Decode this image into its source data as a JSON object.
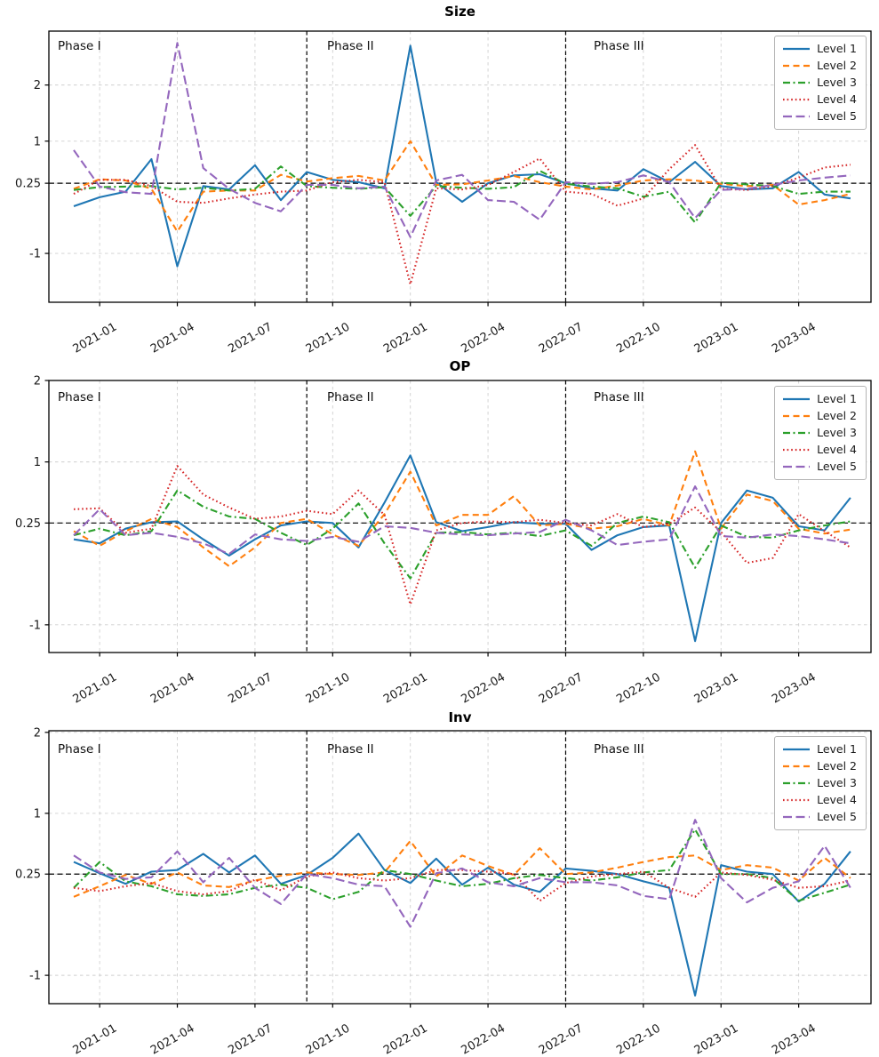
{
  "figure": {
    "background": "#ffffff",
    "text_color": "#000000",
    "grid_color": "#cfcfcf",
    "ref_line_color": "#000000"
  },
  "phases": [
    "Phase I",
    "Phase II",
    "Phase III"
  ],
  "legend": {
    "position": "upper right",
    "labels": [
      "Level 1",
      "Level 2",
      "Level 3",
      "Level 4",
      "Level 5"
    ]
  },
  "x_axis": {
    "tick_labels": [
      "2021-01",
      "2021-04",
      "2021-07",
      "2021-10",
      "2022-01",
      "2022-04",
      "2022-07",
      "2022-10",
      "2023-01",
      "2023-04"
    ]
  },
  "chart_data": [
    {
      "type": "line",
      "title": "Size",
      "categories": [
        "2020-12",
        "2021-01",
        "2021-02",
        "2021-03",
        "2021-04",
        "2021-05",
        "2021-06",
        "2021-07",
        "2021-08",
        "2021-09",
        "2021-10",
        "2021-11",
        "2021-12",
        "2022-01",
        "2022-02",
        "2022-03",
        "2022-04",
        "2022-05",
        "2022-06",
        "2022-07",
        "2022-08",
        "2022-09",
        "2022-10",
        "2022-11",
        "2022-12",
        "2023-01",
        "2023-02",
        "2023-03",
        "2023-04",
        "2023-05",
        "2023-06"
      ],
      "x_tick_indices": [
        1,
        4,
        7,
        10,
        13,
        16,
        19,
        22,
        25,
        28
      ],
      "x_tick_labels": [
        "2021-01",
        "2021-04",
        "2021-07",
        "2021-10",
        "2022-01",
        "2022-04",
        "2022-07",
        "2022-10",
        "2023-01",
        "2023-04"
      ],
      "y_ticks": [
        2,
        1,
        0.25,
        -1
      ],
      "y_tick_labels": [
        "2",
        "1",
        "0.25",
        "-1"
      ],
      "ylim": [
        -1.87,
        2.96
      ],
      "ref_line_y": 0.25,
      "phase_line_indices": [
        9,
        19
      ],
      "grid": true,
      "series": [
        {
          "name": "Level 1",
          "color": "#1f77b4",
          "line_style": "solid",
          "values": [
            -0.16,
            0.0,
            0.1,
            0.68,
            -1.23,
            0.2,
            0.14,
            0.57,
            -0.05,
            0.45,
            0.31,
            0.27,
            0.16,
            2.7,
            0.27,
            -0.08,
            0.25,
            0.39,
            0.41,
            0.25,
            0.16,
            0.12,
            0.5,
            0.27,
            0.63,
            0.2,
            0.14,
            0.16,
            0.45,
            0.05,
            -0.02
          ]
        },
        {
          "name": "Level 2",
          "color": "#ff7f0e",
          "line_style": "dashed",
          "values": [
            0.15,
            0.32,
            0.3,
            0.15,
            -0.61,
            0.1,
            0.12,
            0.12,
            0.4,
            0.28,
            0.34,
            0.38,
            0.3,
            1.0,
            0.22,
            0.23,
            0.3,
            0.38,
            0.27,
            0.19,
            0.14,
            0.21,
            0.3,
            0.32,
            0.3,
            0.24,
            0.2,
            0.22,
            -0.13,
            -0.05,
            0.06
          ]
        },
        {
          "name": "Level 3",
          "color": "#2ca02c",
          "line_style": "dashdot",
          "values": [
            0.13,
            0.18,
            0.19,
            0.2,
            0.14,
            0.17,
            0.12,
            0.15,
            0.55,
            0.2,
            0.17,
            0.15,
            0.18,
            -0.33,
            0.2,
            0.17,
            0.15,
            0.18,
            0.47,
            0.24,
            0.19,
            0.16,
            0.01,
            0.1,
            -0.45,
            0.26,
            0.23,
            0.2,
            0.06,
            0.1,
            0.1
          ]
        },
        {
          "name": "Level 4",
          "color": "#d62728",
          "line_style": "dotted",
          "values": [
            0.06,
            0.31,
            0.31,
            0.2,
            -0.08,
            -0.1,
            -0.02,
            0.05,
            0.1,
            0.12,
            0.27,
            0.31,
            0.27,
            -1.55,
            0.16,
            0.14,
            0.22,
            0.45,
            0.69,
            0.1,
            0.06,
            -0.15,
            -0.02,
            0.5,
            0.93,
            0.15,
            0.13,
            0.2,
            0.35,
            0.53,
            0.58
          ]
        },
        {
          "name": "Level 5",
          "color": "#9467bd",
          "line_style": "longdash",
          "values": [
            0.84,
            0.19,
            0.09,
            0.06,
            2.75,
            0.52,
            0.15,
            -0.1,
            -0.25,
            0.22,
            0.22,
            0.16,
            0.19,
            -0.71,
            0.3,
            0.4,
            -0.05,
            -0.08,
            -0.4,
            0.27,
            0.24,
            0.27,
            0.39,
            0.27,
            -0.37,
            0.13,
            0.15,
            0.22,
            0.3,
            0.35,
            0.39
          ]
        }
      ]
    },
    {
      "type": "line",
      "title": "OP",
      "categories": [
        "2020-12",
        "2021-01",
        "2021-02",
        "2021-03",
        "2021-04",
        "2021-05",
        "2021-06",
        "2021-07",
        "2021-08",
        "2021-09",
        "2021-10",
        "2021-11",
        "2021-12",
        "2022-01",
        "2022-02",
        "2022-03",
        "2022-04",
        "2022-05",
        "2022-06",
        "2022-07",
        "2022-08",
        "2022-09",
        "2022-10",
        "2022-11",
        "2022-12",
        "2023-01",
        "2023-02",
        "2023-03",
        "2023-04",
        "2023-05",
        "2023-06"
      ],
      "x_tick_indices": [
        1,
        4,
        7,
        10,
        13,
        16,
        19,
        22,
        25,
        28
      ],
      "x_tick_labels": [
        "2021-01",
        "2021-04",
        "2021-07",
        "2021-10",
        "2022-01",
        "2022-04",
        "2022-07",
        "2022-10",
        "2023-01",
        "2023-04"
      ],
      "y_ticks": [
        2,
        1,
        0.25,
        -1
      ],
      "y_tick_labels": [
        "2",
        "1",
        "0.25",
        "-1"
      ],
      "ylim": [
        -1.34,
        2.0
      ],
      "ref_line_y": 0.25,
      "phase_line_indices": [
        9,
        19
      ],
      "grid": true,
      "series": [
        {
          "name": "Level 1",
          "color": "#1f77b4",
          "line_style": "solid",
          "values": [
            0.05,
            0.0,
            0.18,
            0.26,
            0.27,
            0.05,
            -0.15,
            0.05,
            0.22,
            0.27,
            0.25,
            -0.05,
            0.5,
            1.08,
            0.26,
            0.15,
            0.2,
            0.26,
            0.24,
            0.24,
            -0.08,
            0.1,
            0.2,
            0.22,
            -1.2,
            0.25,
            0.65,
            0.56,
            0.21,
            0.16,
            0.56
          ]
        },
        {
          "name": "Level 2",
          "color": "#ff7f0e",
          "line_style": "dashed",
          "values": [
            0.15,
            -0.03,
            0.15,
            0.3,
            0.2,
            -0.05,
            -0.28,
            -0.05,
            0.25,
            0.3,
            0.11,
            -0.03,
            0.36,
            0.88,
            0.22,
            0.35,
            0.35,
            0.58,
            0.22,
            0.24,
            0.18,
            0.21,
            0.3,
            0.22,
            1.13,
            0.18,
            0.6,
            0.52,
            0.18,
            0.12,
            0.17
          ]
        },
        {
          "name": "Level 3",
          "color": "#2ca02c",
          "line_style": "dashdot",
          "values": [
            0.1,
            0.18,
            0.1,
            0.15,
            0.65,
            0.45,
            0.33,
            0.3,
            0.13,
            -0.02,
            0.18,
            0.49,
            0.0,
            -0.43,
            0.13,
            0.14,
            0.11,
            0.13,
            0.09,
            0.16,
            -0.03,
            0.25,
            0.33,
            0.26,
            -0.3,
            0.22,
            0.08,
            0.07,
            0.16,
            0.22,
            0.27
          ]
        },
        {
          "name": "Level 4",
          "color": "#d62728",
          "line_style": "dotted",
          "values": [
            0.42,
            0.43,
            0.13,
            0.18,
            0.95,
            0.6,
            0.44,
            0.3,
            0.33,
            0.4,
            0.36,
            0.65,
            0.35,
            -0.75,
            0.16,
            0.25,
            0.27,
            0.26,
            0.29,
            0.25,
            0.22,
            0.36,
            0.2,
            0.24,
            0.44,
            0.14,
            -0.24,
            -0.18,
            0.36,
            0.15,
            -0.05
          ]
        },
        {
          "name": "Level 5",
          "color": "#9467bd",
          "line_style": "longdash",
          "values": [
            0.1,
            0.42,
            0.1,
            0.13,
            0.08,
            0.0,
            -0.13,
            0.11,
            0.05,
            0.03,
            0.08,
            0.02,
            0.21,
            0.19,
            0.13,
            0.11,
            0.1,
            0.12,
            0.14,
            0.29,
            0.16,
            -0.02,
            0.02,
            0.05,
            0.7,
            0.09,
            0.07,
            0.11,
            0.09,
            0.05,
            0.0
          ]
        }
      ]
    },
    {
      "type": "line",
      "title": "Inv",
      "categories": [
        "2020-12",
        "2021-01",
        "2021-02",
        "2021-03",
        "2021-04",
        "2021-05",
        "2021-06",
        "2021-07",
        "2021-08",
        "2021-09",
        "2021-10",
        "2021-11",
        "2021-12",
        "2022-01",
        "2022-02",
        "2022-03",
        "2022-04",
        "2022-05",
        "2022-06",
        "2022-07",
        "2022-08",
        "2022-09",
        "2022-10",
        "2022-11",
        "2022-12",
        "2023-01",
        "2023-02",
        "2023-03",
        "2023-04",
        "2023-05",
        "2023-06"
      ],
      "x_tick_indices": [
        1,
        4,
        7,
        10,
        13,
        16,
        19,
        22,
        25,
        28
      ],
      "x_tick_labels": [
        "2021-01",
        "2021-04",
        "2021-07",
        "2021-10",
        "2022-01",
        "2022-04",
        "2022-07",
        "2022-10",
        "2023-01",
        "2023-04"
      ],
      "y_ticks": [
        2,
        1,
        0.25,
        -1
      ],
      "y_tick_labels": [
        "2",
        "1",
        "0.25",
        "-1"
      ],
      "ylim": [
        -1.35,
        2.02
      ],
      "ref_line_y": 0.25,
      "phase_line_indices": [
        9,
        19
      ],
      "grid": true,
      "series": [
        {
          "name": "Level 1",
          "color": "#1f77b4",
          "line_style": "solid",
          "values": [
            0.4,
            0.26,
            0.13,
            0.28,
            0.3,
            0.5,
            0.27,
            0.48,
            0.13,
            0.24,
            0.45,
            0.75,
            0.3,
            0.14,
            0.44,
            0.12,
            0.33,
            0.12,
            0.03,
            0.32,
            0.29,
            0.25,
            0.16,
            0.08,
            -1.25,
            0.36,
            0.28,
            0.25,
            -0.09,
            0.13,
            0.53
          ]
        },
        {
          "name": "Level 2",
          "color": "#ff7f0e",
          "line_style": "dashed",
          "values": [
            -0.03,
            0.1,
            0.24,
            0.13,
            0.27,
            0.11,
            0.09,
            0.17,
            0.23,
            0.27,
            0.25,
            0.24,
            0.27,
            0.66,
            0.22,
            0.48,
            0.35,
            0.24,
            0.57,
            0.25,
            0.27,
            0.33,
            0.4,
            0.46,
            0.48,
            0.3,
            0.36,
            0.33,
            0.17,
            0.45,
            0.2
          ]
        },
        {
          "name": "Level 3",
          "color": "#2ca02c",
          "line_style": "dashdot",
          "values": [
            0.08,
            0.4,
            0.16,
            0.1,
            0.0,
            -0.02,
            0.0,
            0.08,
            0.12,
            0.08,
            -0.06,
            0.03,
            0.3,
            0.25,
            0.17,
            0.1,
            0.13,
            0.2,
            0.24,
            0.2,
            0.17,
            0.21,
            0.27,
            0.3,
            0.8,
            0.25,
            0.25,
            0.2,
            -0.08,
            0.02,
            0.12
          ]
        },
        {
          "name": "Level 4",
          "color": "#d62728",
          "line_style": "dotted",
          "values": [
            0.08,
            0.04,
            0.1,
            0.14,
            0.04,
            0.0,
            0.04,
            0.18,
            0.05,
            0.22,
            0.27,
            0.2,
            0.17,
            0.2,
            0.3,
            0.3,
            0.28,
            0.25,
            -0.08,
            0.14,
            0.22,
            0.25,
            0.28,
            0.08,
            -0.03,
            0.27,
            0.24,
            0.18,
            0.08,
            0.1,
            0.17
          ]
        },
        {
          "name": "Level 5",
          "color": "#9467bd",
          "line_style": "longdash",
          "values": [
            0.48,
            0.27,
            0.19,
            0.21,
            0.53,
            0.15,
            0.45,
            0.08,
            -0.12,
            0.25,
            0.2,
            0.12,
            0.1,
            -0.4,
            0.26,
            0.32,
            0.15,
            0.1,
            0.2,
            0.15,
            0.15,
            0.11,
            -0.02,
            -0.06,
            0.92,
            0.2,
            -0.1,
            0.08,
            0.16,
            0.6,
            0.08
          ]
        }
      ]
    }
  ]
}
